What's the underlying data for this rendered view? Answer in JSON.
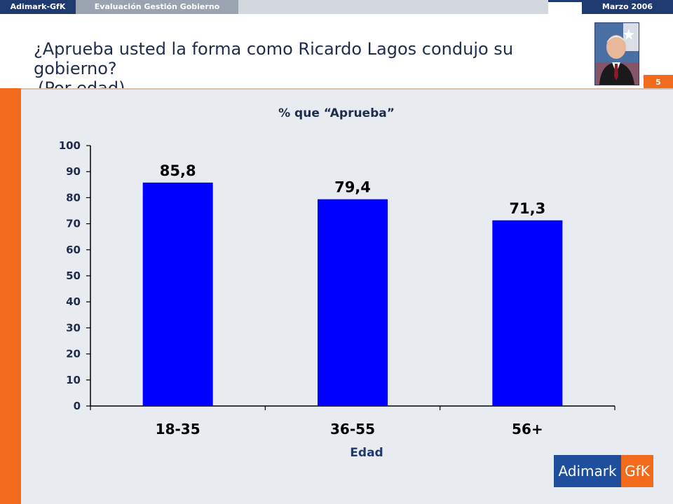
{
  "header": {
    "brand": "Adimark-GfK",
    "section": "Evaluación Gestión Gobierno",
    "date": "Marzo 2006",
    "page_number": "5"
  },
  "title_line1": "¿Aprueba usted la forma como Ricardo Lagos condujo su gobierno?",
  "title_line2": "(Por edad)",
  "logo": {
    "left": "Adimark",
    "right": "GfK"
  },
  "colors": {
    "bar": "#0000ff",
    "accent": "#f26a1b",
    "navy": "#1f3a6e"
  },
  "chart_data": {
    "type": "bar",
    "title": "% que “Aprueba”",
    "xlabel": "Edad",
    "ylabel": "",
    "categories": [
      "18-35",
      "36-55",
      "56+"
    ],
    "values": [
      85.8,
      79.4,
      71.3
    ],
    "value_labels": [
      "85,8",
      "79,4",
      "71,3"
    ],
    "ylim": [
      0,
      100
    ],
    "yticks": [
      0,
      10,
      20,
      30,
      40,
      50,
      60,
      70,
      80,
      90,
      100
    ],
    "grid": false,
    "legend": "none"
  }
}
